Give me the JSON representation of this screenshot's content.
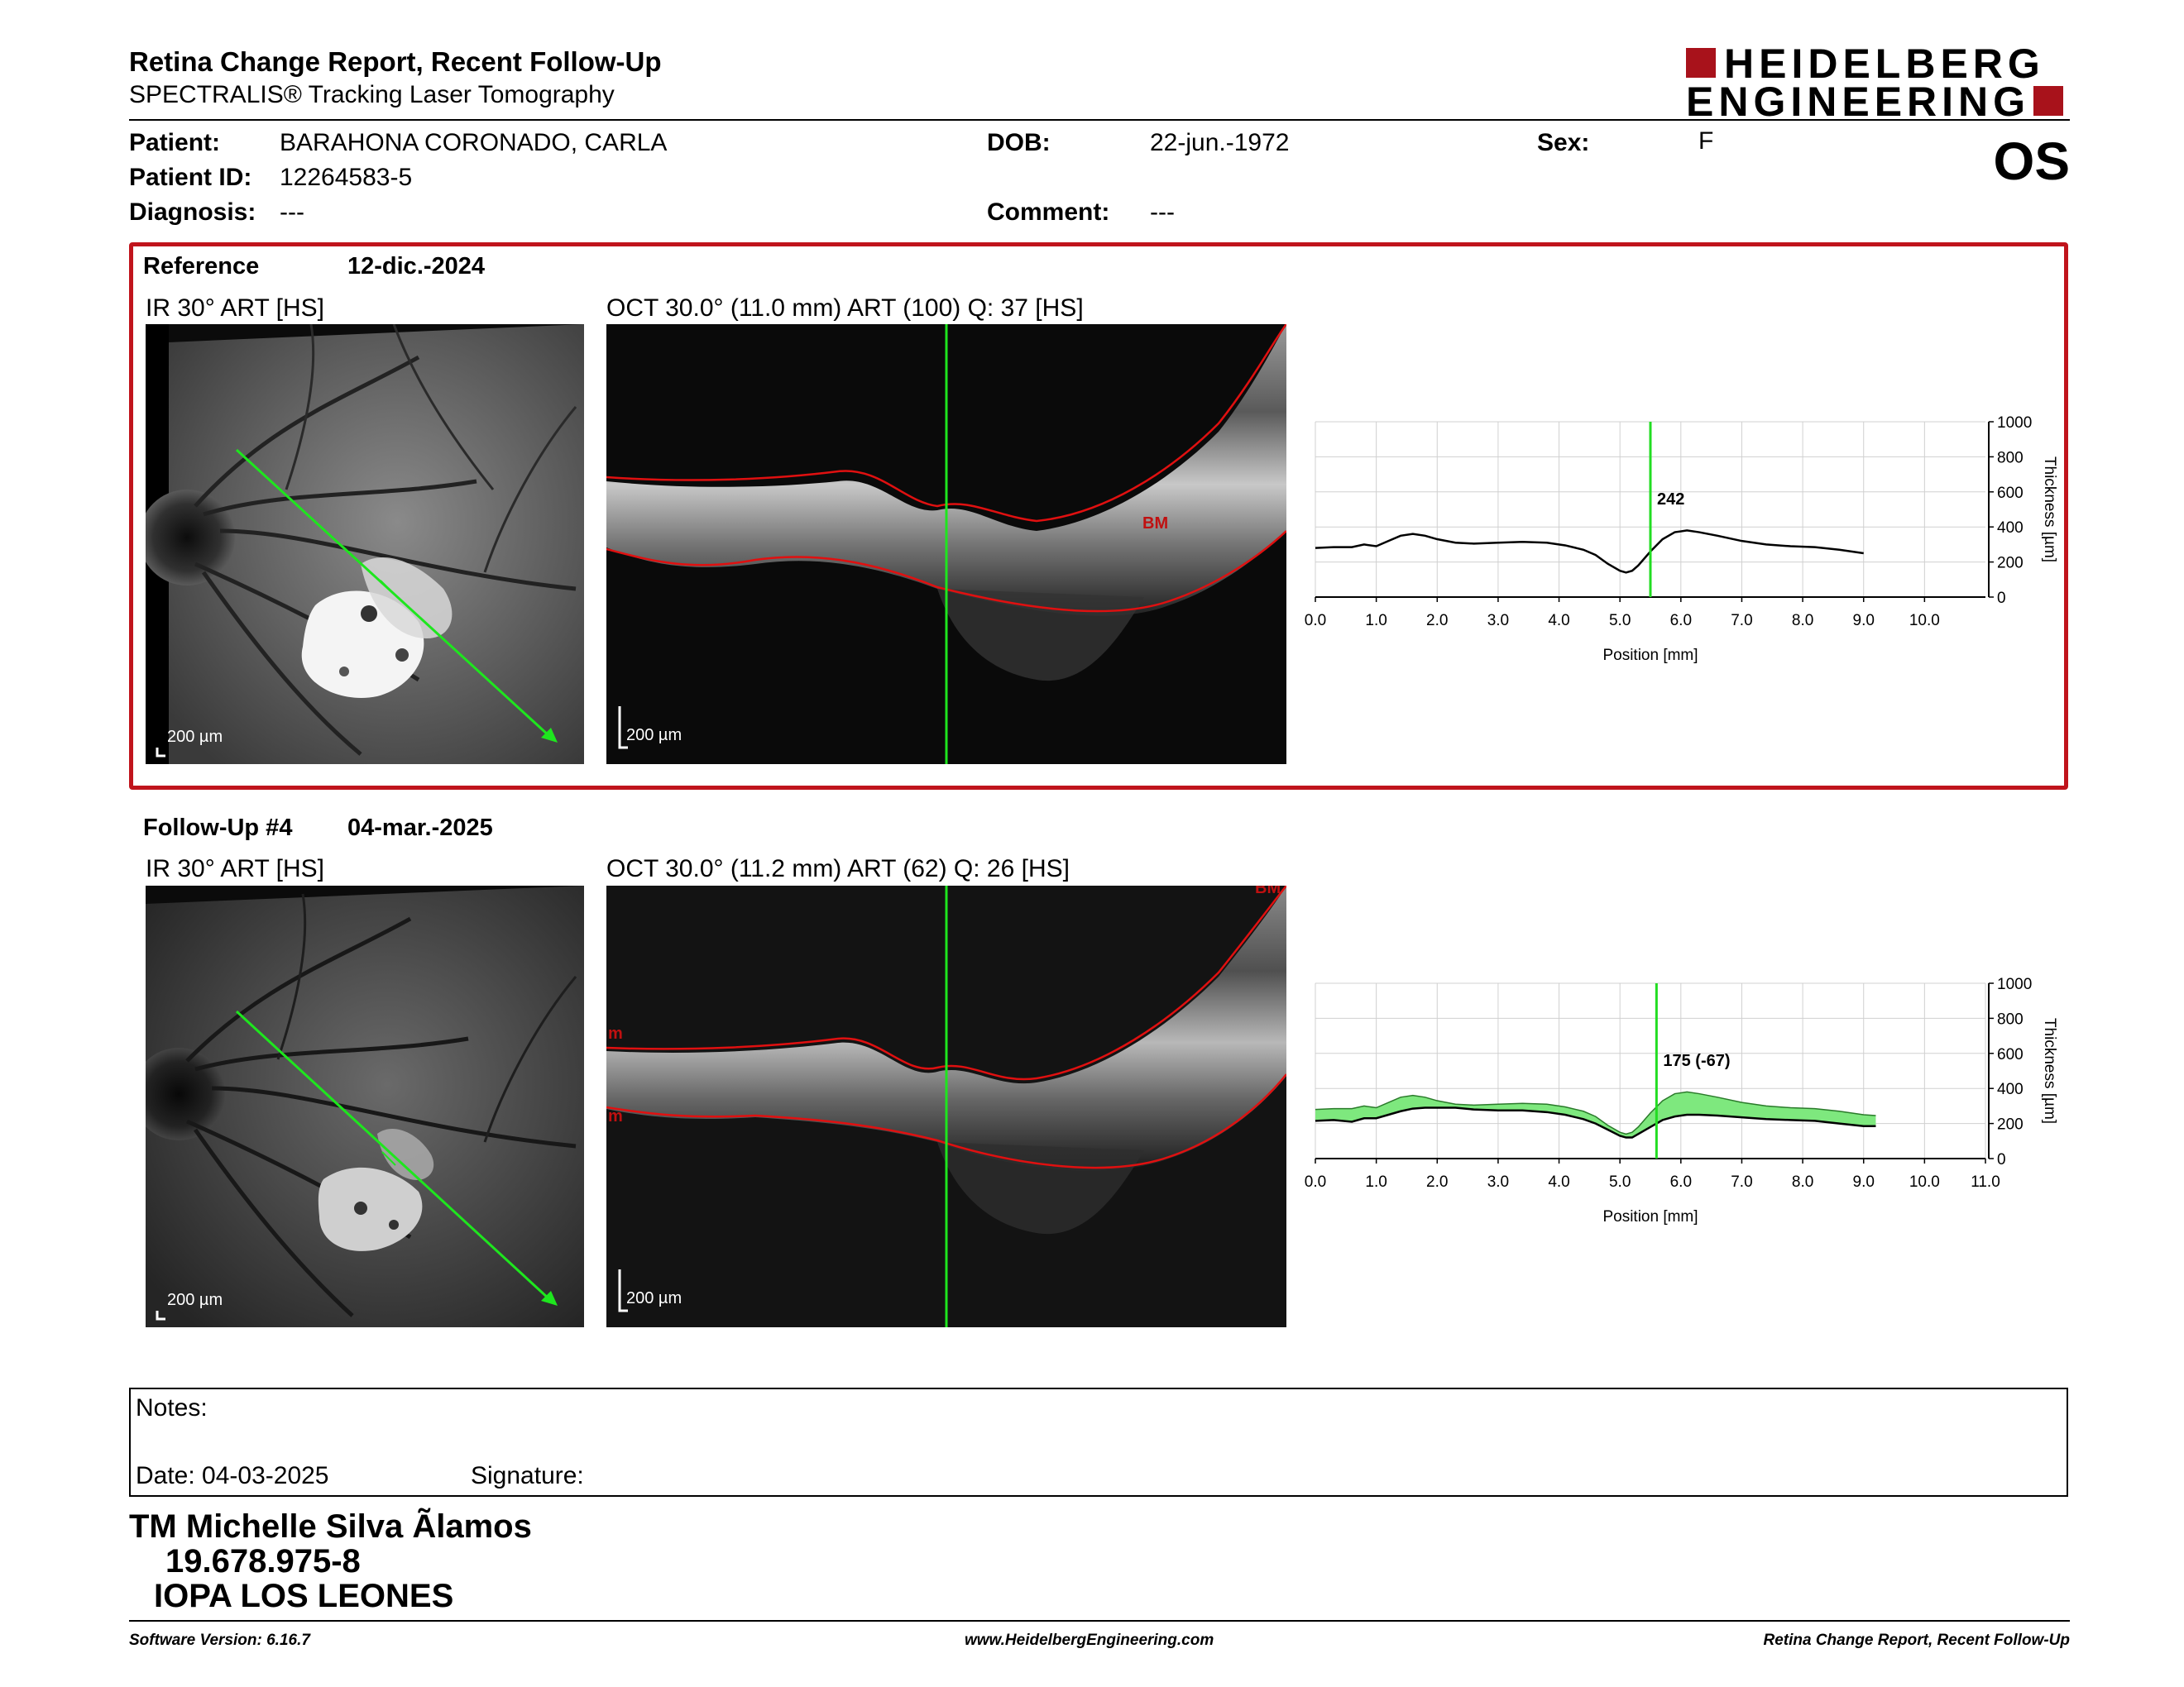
{
  "header": {
    "title": "Retina Change Report, Recent Follow-Up",
    "subtitle": "SPECTRALIS® Tracking Laser Tomography",
    "logo_line1": "HEIDELBERG",
    "logo_line2": "ENGINEERING",
    "eye": "OS"
  },
  "patient": {
    "patient_label": "Patient:",
    "patient_value": "BARAHONA CORONADO, CARLA",
    "id_label": "Patient ID:",
    "id_value": "12264583-5",
    "diagnosis_label": "Diagnosis:",
    "diagnosis_value": "---",
    "dob_label": "DOB:",
    "dob_value": "22-jun.-1972",
    "comment_label": "Comment:",
    "comment_value": "---",
    "sex_label": "Sex:",
    "sex_value": "F"
  },
  "reference": {
    "label": "Reference",
    "date": "12-dic.-2024",
    "ir_label": "IR 30° ART [HS]",
    "oct_label": "OCT 30.0° (11.0 mm) ART (100) Q: 37 [HS]",
    "scale_ir": "200 µm",
    "scale_oct": "200 µm",
    "layer_label": "BM"
  },
  "followup": {
    "label": "Follow-Up #4",
    "date": "04-mar.-2025",
    "ir_label": "IR 30° ART [HS]",
    "oct_label": "OCT 30.0° (11.2 mm) ART (62) Q: 26 [HS]",
    "scale_ir": "200 µm",
    "scale_oct": "200 µm",
    "layer_label": "BM",
    "side_label_top": "m",
    "side_label_bottom": "m"
  },
  "chart_data": [
    {
      "type": "line",
      "xlabel": "Position [mm]",
      "ylabel": "Thickness [µm]",
      "xlim": [
        0,
        11
      ],
      "ylim": [
        0,
        1000
      ],
      "x_ticks": [
        "0.0",
        "1.0",
        "2.0",
        "3.0",
        "4.0",
        "5.0",
        "6.0",
        "7.0",
        "8.0",
        "9.0",
        "10.0"
      ],
      "y_ticks": [
        "0",
        "200",
        "400",
        "600",
        "800",
        "1000"
      ],
      "cursor_x": 5.5,
      "cursor_label": "242",
      "cursor_color": "#22dd22",
      "series": [
        {
          "color": "#000000",
          "x": [
            0.0,
            0.3,
            0.6,
            0.8,
            1.0,
            1.2,
            1.4,
            1.6,
            1.8,
            2.0,
            2.3,
            2.6,
            3.0,
            3.4,
            3.8,
            4.1,
            4.4,
            4.6,
            4.8,
            5.0,
            5.1,
            5.2,
            5.3,
            5.5,
            5.7,
            5.9,
            6.1,
            6.3,
            6.6,
            7.0,
            7.4,
            7.8,
            8.2,
            8.6,
            9.0
          ],
          "y": [
            280,
            285,
            285,
            300,
            290,
            320,
            350,
            360,
            350,
            330,
            310,
            305,
            310,
            315,
            310,
            295,
            270,
            240,
            190,
            150,
            140,
            150,
            180,
            260,
            330,
            370,
            380,
            370,
            350,
            320,
            300,
            290,
            285,
            270,
            250
          ]
        }
      ]
    },
    {
      "type": "area",
      "xlabel": "Position [mm]",
      "ylabel": "Thickness [µm]",
      "xlim": [
        0,
        11
      ],
      "ylim": [
        0,
        1000
      ],
      "x_ticks": [
        "0.0",
        "1.0",
        "2.0",
        "3.0",
        "4.0",
        "5.0",
        "6.0",
        "7.0",
        "8.0",
        "9.0",
        "10.0",
        "11.0"
      ],
      "y_ticks": [
        "0",
        "200",
        "400",
        "600",
        "800",
        "1000"
      ],
      "cursor_x": 5.6,
      "cursor_label": "175 (-67)",
      "cursor_color": "#22dd22",
      "fill_color": "#7ee87e",
      "series": [
        {
          "color": "#000000",
          "x": [
            0.0,
            0.3,
            0.6,
            0.8,
            1.0,
            1.2,
            1.4,
            1.6,
            1.8,
            2.0,
            2.3,
            2.6,
            3.0,
            3.4,
            3.8,
            4.1,
            4.4,
            4.6,
            4.8,
            5.0,
            5.1,
            5.2,
            5.3,
            5.5,
            5.7,
            5.9,
            6.1,
            6.3,
            6.6,
            7.0,
            7.4,
            7.8,
            8.2,
            8.6,
            9.0,
            9.2
          ],
          "y": [
            215,
            220,
            210,
            230,
            230,
            250,
            270,
            285,
            290,
            290,
            290,
            280,
            275,
            275,
            265,
            250,
            225,
            200,
            165,
            130,
            120,
            120,
            140,
            180,
            220,
            240,
            250,
            250,
            245,
            235,
            225,
            220,
            215,
            200,
            185,
            185
          ]
        },
        {
          "color": "#2a7a2a",
          "x": [
            0.0,
            0.3,
            0.6,
            0.8,
            1.0,
            1.2,
            1.4,
            1.6,
            1.8,
            2.0,
            2.3,
            2.6,
            3.0,
            3.4,
            3.8,
            4.1,
            4.4,
            4.6,
            4.8,
            5.0,
            5.1,
            5.2,
            5.3,
            5.5,
            5.7,
            5.9,
            6.1,
            6.3,
            6.6,
            7.0,
            7.4,
            7.8,
            8.2,
            8.6,
            9.0,
            9.2
          ],
          "y": [
            280,
            285,
            285,
            300,
            290,
            320,
            350,
            360,
            350,
            330,
            310,
            305,
            310,
            315,
            310,
            295,
            270,
            240,
            190,
            150,
            140,
            150,
            180,
            260,
            330,
            370,
            380,
            370,
            350,
            320,
            300,
            290,
            285,
            270,
            250,
            245
          ]
        }
      ]
    }
  ],
  "notes": {
    "label": "Notes:",
    "date_label": "Date: 04-03-2025",
    "signature_label": "Signature:"
  },
  "signature": {
    "name": "TM Michelle Silva Ãlamos",
    "id": "19.678.975-8",
    "org": "IOPA LOS LEONES"
  },
  "footer": {
    "left": "Software Version: 6.16.7",
    "center": "www.HeidelbergEngineering.com",
    "right": "Retina Change Report, Recent Follow-Up"
  }
}
